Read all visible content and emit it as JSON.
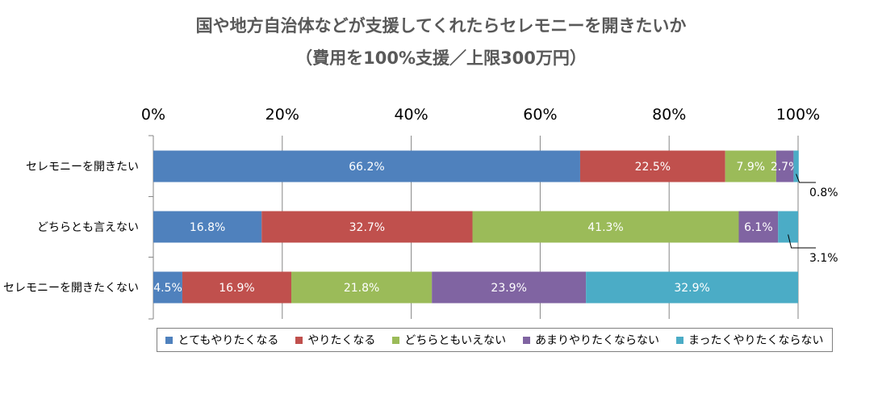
{
  "chart_data": {
    "type": "bar",
    "orientation": "horizontal",
    "stacked": true,
    "title": "国や地方自治体などが支援してくれたらセレモニーを開きたいか",
    "subtitle": "（費用を100%支援／上限300万円）",
    "categories": [
      "セレモニーを開きたい",
      "どちらとも言えない",
      "セレモニーを開きたくない"
    ],
    "xlim": [
      0,
      100
    ],
    "x_ticks": [
      "0%",
      "20%",
      "40%",
      "60%",
      "80%",
      "100%"
    ],
    "series": [
      {
        "name": "とてもやりたくなる",
        "color": "#4F81BD",
        "values": [
          66.2,
          16.8,
          4.5
        ],
        "labels": [
          "66.2%",
          "16.8%",
          "4.5%"
        ]
      },
      {
        "name": "やりたくなる",
        "color": "#C0504D",
        "values": [
          22.5,
          32.7,
          16.9
        ],
        "labels": [
          "22.5%",
          "32.7%",
          "16.9%"
        ]
      },
      {
        "name": "どちらともいえない",
        "color": "#9BBB59",
        "values": [
          7.9,
          41.3,
          21.8
        ],
        "labels": [
          "7.9%",
          "41.3%",
          "21.8%"
        ]
      },
      {
        "name": "あまりやりたくならない",
        "color": "#8064A2",
        "values": [
          2.7,
          6.1,
          23.9
        ],
        "labels": [
          "2.7%",
          "6.1%",
          "23.9%"
        ]
      },
      {
        "name": "まったくやりたくならない",
        "color": "#4BACC6",
        "values": [
          0.8,
          3.1,
          32.9
        ],
        "labels": [
          "0.8%",
          "3.1%",
          "32.9%"
        ]
      }
    ],
    "callouts": [
      {
        "category_index": 0,
        "series_index": 4,
        "text": "0.8%"
      },
      {
        "category_index": 1,
        "series_index": 4,
        "text": "3.1%"
      }
    ],
    "legend_position": "bottom",
    "grid": true
  }
}
